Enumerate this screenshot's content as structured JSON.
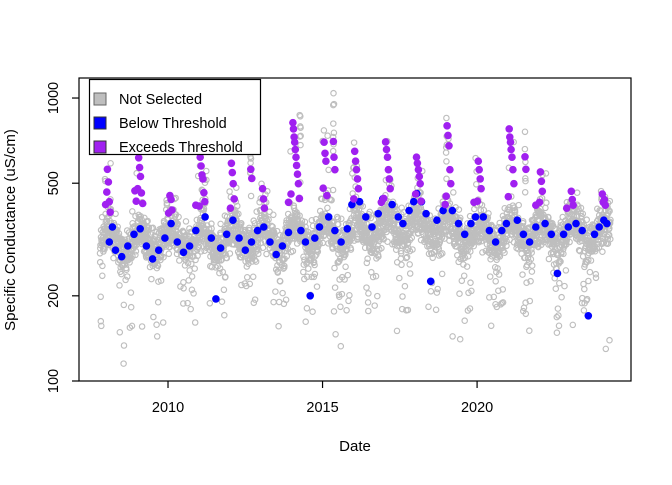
{
  "figure": {
    "background": "#FFFFFF"
  },
  "axes": {
    "x_label": "Date",
    "y_label": "Specific Conductance (uS/cm)",
    "x_tick_labels": [
      "2010",
      "2015",
      "2020"
    ],
    "y_tick_labels": [
      "100",
      "200",
      "500",
      "1000"
    ]
  },
  "legend": {
    "items": [
      {
        "label": "Not Selected",
        "color": "#BEBEBE",
        "border": "#666666"
      },
      {
        "label": "Below Threshold",
        "color": "#0000FF",
        "border": "#333333"
      },
      {
        "label": "Exceeds Threshold",
        "color": "#A020F0",
        "border": "#333333"
      }
    ]
  },
  "chart_data": {
    "type": "scatter",
    "title": "",
    "xlabel": "Date",
    "ylabel": "Specific Conductance (uS/cm)",
    "x_ticks": [
      2010,
      2015,
      2020
    ],
    "y_ticks": [
      100,
      200,
      500,
      1000
    ],
    "y_scale": "log10",
    "x_range": [
      2007.12,
      2024.98
    ],
    "y_range": [
      100,
      1177
    ],
    "grid": false,
    "legend_position": "top-left",
    "series": [
      {
        "name": "Not Selected",
        "marker": "open-circle",
        "color": "#BEBEBE",
        "representation": "dense daily cloud (~3000 pts), band ~270-420 uS/cm with winter spikes to ~1040 and summer lows to ~115; generated from cloud spec below"
      },
      {
        "name": "Below Threshold",
        "marker": "filled-circle",
        "color": "#0000FF",
        "points": [
          [
            2008.1,
            310
          ],
          [
            2008.2,
            350
          ],
          [
            2008.3,
            290
          ],
          [
            2008.5,
            275
          ],
          [
            2008.7,
            300
          ],
          [
            2008.9,
            330
          ],
          [
            2009.1,
            345
          ],
          [
            2009.3,
            300
          ],
          [
            2009.5,
            270
          ],
          [
            2009.7,
            290
          ],
          [
            2009.9,
            320
          ],
          [
            2010.1,
            360
          ],
          [
            2010.3,
            310
          ],
          [
            2010.5,
            285
          ],
          [
            2010.7,
            300
          ],
          [
            2010.9,
            340
          ],
          [
            2011.2,
            380
          ],
          [
            2011.4,
            320
          ],
          [
            2011.55,
            195
          ],
          [
            2011.7,
            295
          ],
          [
            2011.9,
            330
          ],
          [
            2012.1,
            370
          ],
          [
            2012.3,
            320
          ],
          [
            2012.5,
            290
          ],
          [
            2012.7,
            310
          ],
          [
            2012.9,
            340
          ],
          [
            2013.1,
            350
          ],
          [
            2013.3,
            310
          ],
          [
            2013.5,
            280
          ],
          [
            2013.7,
            300
          ],
          [
            2013.9,
            335
          ],
          [
            2014.3,
            340
          ],
          [
            2014.45,
            310
          ],
          [
            2014.6,
            200
          ],
          [
            2014.75,
            320
          ],
          [
            2014.9,
            350
          ],
          [
            2015.2,
            380
          ],
          [
            2015.4,
            340
          ],
          [
            2015.6,
            310
          ],
          [
            2015.8,
            345
          ],
          [
            2015.95,
            420
          ],
          [
            2016.2,
            430
          ],
          [
            2016.4,
            380
          ],
          [
            2016.6,
            350
          ],
          [
            2016.8,
            390
          ],
          [
            2016.95,
            440
          ],
          [
            2017.25,
            420
          ],
          [
            2017.45,
            380
          ],
          [
            2017.6,
            360
          ],
          [
            2017.8,
            400
          ],
          [
            2017.95,
            430
          ],
          [
            2018.05,
            460
          ],
          [
            2018.2,
            430
          ],
          [
            2018.35,
            390
          ],
          [
            2018.5,
            225
          ],
          [
            2018.7,
            370
          ],
          [
            2018.9,
            400
          ],
          [
            2019.2,
            400
          ],
          [
            2019.4,
            360
          ],
          [
            2019.6,
            330
          ],
          [
            2019.8,
            360
          ],
          [
            2019.95,
            380
          ],
          [
            2020.2,
            380
          ],
          [
            2020.4,
            340
          ],
          [
            2020.6,
            310
          ],
          [
            2020.8,
            340
          ],
          [
            2020.95,
            360
          ],
          [
            2021.3,
            370
          ],
          [
            2021.5,
            330
          ],
          [
            2021.7,
            310
          ],
          [
            2021.9,
            350
          ],
          [
            2022.2,
            360
          ],
          [
            2022.4,
            330
          ],
          [
            2022.6,
            240
          ],
          [
            2022.8,
            330
          ],
          [
            2022.95,
            350
          ],
          [
            2023.2,
            360
          ],
          [
            2023.4,
            340
          ],
          [
            2023.6,
            170
          ],
          [
            2023.8,
            330
          ],
          [
            2023.95,
            350
          ],
          [
            2024.1,
            370
          ],
          [
            2024.2,
            360
          ]
        ]
      },
      {
        "name": "Exceeds Threshold",
        "marker": "filled-circle",
        "color": "#A020F0",
        "points": [
          [
            2007.98,
            420
          ],
          [
            2008.02,
            465
          ],
          [
            2008.04,
            560
          ],
          [
            2008.07,
            505
          ],
          [
            2008.1,
            430
          ],
          [
            2008.13,
            395
          ],
          [
            2008.93,
            470
          ],
          [
            2008.97,
            432
          ],
          [
            2009.02,
            478
          ],
          [
            2009.05,
            615
          ],
          [
            2009.08,
            568
          ],
          [
            2009.11,
            528
          ],
          [
            2009.14,
            462
          ],
          [
            2009.18,
            424
          ],
          [
            2010.02,
            392
          ],
          [
            2010.06,
            452
          ],
          [
            2010.1,
            438
          ],
          [
            2010.13,
            402
          ],
          [
            2010.9,
            418
          ],
          [
            2011.01,
            415
          ],
          [
            2011.04,
            618
          ],
          [
            2011.07,
            575
          ],
          [
            2011.1,
            535
          ],
          [
            2011.13,
            518
          ],
          [
            2011.16,
            463
          ],
          [
            2011.19,
            430
          ],
          [
            2012.02,
            408
          ],
          [
            2012.05,
            588
          ],
          [
            2012.08,
            545
          ],
          [
            2012.11,
            498
          ],
          [
            2012.14,
            440
          ],
          [
            2012.68,
            560
          ],
          [
            2012.71,
            520
          ],
          [
            2013.06,
            478
          ],
          [
            2013.09,
            440
          ],
          [
            2013.12,
            408
          ],
          [
            2013.9,
            428
          ],
          [
            2013.98,
            458
          ],
          [
            2014.04,
            818
          ],
          [
            2014.06,
            778
          ],
          [
            2014.08,
            728
          ],
          [
            2014.1,
            698
          ],
          [
            2014.12,
            658
          ],
          [
            2014.14,
            618
          ],
          [
            2014.16,
            578
          ],
          [
            2014.19,
            538
          ],
          [
            2014.22,
            498
          ],
          [
            2014.25,
            442
          ],
          [
            2015.02,
            480
          ],
          [
            2015.05,
            698
          ],
          [
            2015.08,
            638
          ],
          [
            2015.11,
            598
          ],
          [
            2015.14,
            452
          ],
          [
            2015.35,
            702
          ],
          [
            2015.37,
            618
          ],
          [
            2015.4,
            558
          ],
          [
            2016.01,
            440
          ],
          [
            2016.04,
            648
          ],
          [
            2016.07,
            598
          ],
          [
            2016.1,
            558
          ],
          [
            2016.13,
            518
          ],
          [
            2016.16,
            478
          ],
          [
            2016.9,
            428
          ],
          [
            2016.98,
            442
          ],
          [
            2017.04,
            700
          ],
          [
            2017.07,
            658
          ],
          [
            2017.1,
            618
          ],
          [
            2017.13,
            558
          ],
          [
            2017.16,
            518
          ],
          [
            2017.19,
            478
          ],
          [
            2018.01,
            458
          ],
          [
            2018.04,
            618
          ],
          [
            2018.07,
            588
          ],
          [
            2018.1,
            558
          ],
          [
            2018.13,
            528
          ],
          [
            2018.16,
            498
          ],
          [
            2018.19,
            432
          ],
          [
            2018.97,
            420
          ],
          [
            2019.0,
            450
          ],
          [
            2019.03,
            798
          ],
          [
            2019.06,
            738
          ],
          [
            2019.09,
            678
          ],
          [
            2019.12,
            558
          ],
          [
            2019.15,
            498
          ],
          [
            2019.9,
            428
          ],
          [
            2020.01,
            432
          ],
          [
            2020.04,
            598
          ],
          [
            2020.07,
            558
          ],
          [
            2020.1,
            518
          ],
          [
            2020.13,
            478
          ],
          [
            2021.01,
            448
          ],
          [
            2021.04,
            778
          ],
          [
            2021.06,
            728
          ],
          [
            2021.08,
            698
          ],
          [
            2021.1,
            658
          ],
          [
            2021.13,
            618
          ],
          [
            2021.16,
            558
          ],
          [
            2021.19,
            498
          ],
          [
            2021.55,
            620
          ],
          [
            2021.58,
            560
          ],
          [
            2021.9,
            418
          ],
          [
            2022.02,
            428
          ],
          [
            2022.05,
            548
          ],
          [
            2022.08,
            508
          ],
          [
            2022.11,
            468
          ],
          [
            2022.9,
            408
          ],
          [
            2023.05,
            468
          ],
          [
            2023.08,
            438
          ],
          [
            2023.11,
            418
          ],
          [
            2024.05,
            458
          ],
          [
            2024.08,
            428
          ],
          [
            2024.12,
            438
          ],
          [
            2024.15,
            418
          ]
        ]
      }
    ],
    "not_selected_cloud": {
      "seed": 42,
      "t_start": 2007.8,
      "t_end": 2024.32,
      "t_step": 0.0052,
      "base_level": 325,
      "seasonal_amp": 0.09,
      "seasonal_phase": 0.1,
      "noise_sd": 0.085,
      "winter_window": 0.25,
      "winter_spike_prob": 0.12,
      "spike_floor": 400,
      "summer_dip_prob": 0.1,
      "deep_low_prob": 0.004,
      "deep_low_range": [
        112,
        165
      ],
      "value_clamp": [
        108,
        1100
      ],
      "year_band_factor": {
        "2007": 0.97,
        "2008": 0.96,
        "2009": 0.96,
        "2010": 0.97,
        "2011": 0.98,
        "2012": 0.99,
        "2013": 0.98,
        "2014": 1.0,
        "2015": 1.02,
        "2016": 1.06,
        "2017": 1.08,
        "2018": 1.07,
        "2019": 1.04,
        "2020": 1.02,
        "2021": 1.03,
        "2022": 1.02,
        "2023": 1.03,
        "2024": 1.04
      },
      "year_spike_top": {
        "2008": 600,
        "2009": 650,
        "2010": 480,
        "2011": 650,
        "2012": 620,
        "2013": 500,
        "2014": 870,
        "2015": 900,
        "2016": 700,
        "2017": 730,
        "2018": 650,
        "2019": 850,
        "2020": 640,
        "2021": 800,
        "2022": 580,
        "2023": 500,
        "2024": 470
      },
      "events": [
        [
          2012.68,
          620,
          6
        ],
        [
          2014.28,
          870,
          8
        ],
        [
          2015.36,
          1040,
          9
        ],
        [
          2019.0,
          850,
          6
        ],
        [
          2021.55,
          760,
          7
        ]
      ]
    }
  }
}
